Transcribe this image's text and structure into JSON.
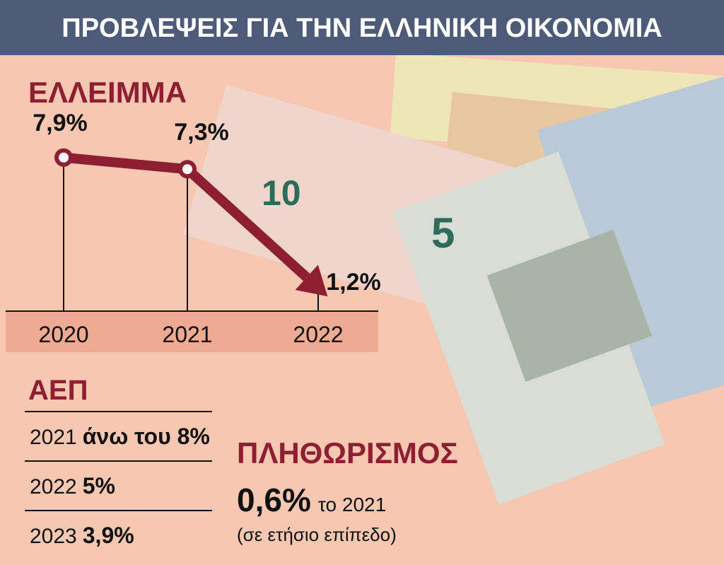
{
  "title": "ΠΡΟΒΛΕΨΕΙΣ ΓΙΑ ΤΗΝ ΕΛΛΗΝΙΚΗ ΟΙΚΟΝΟΜΙΑ",
  "chart_data": {
    "type": "line",
    "title": "ΕΛΛΕΙΜΜΑ",
    "categories": [
      "2020",
      "2021",
      "2022"
    ],
    "values": [
      7.9,
      7.3,
      1.2
    ],
    "value_labels": [
      "7,9%",
      "7,3%",
      "1,2%"
    ],
    "color": "#8e1f33"
  },
  "gdp": {
    "title": "ΑΕΠ",
    "rows": [
      [
        "2021",
        "άνω του 8%"
      ],
      [
        "2022",
        "5%"
      ],
      [
        "2023",
        "3,9%"
      ]
    ]
  },
  "inflation": {
    "title": "ΠΛΗΘΩΡΙΣΜΟΣ",
    "value": "0,6%",
    "year_text": "το 2021",
    "note": "(σε ετήσιο επίπεδο)"
  }
}
